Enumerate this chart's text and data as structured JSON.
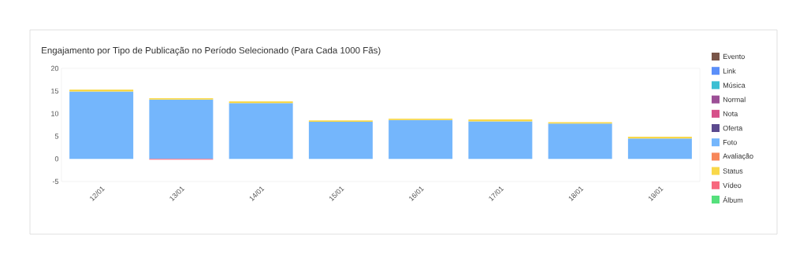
{
  "chart_data": {
    "type": "bar",
    "title": "Engajamento por Tipo de Publicação no Período Selecionado (Para Cada 1000 Fãs)",
    "stacked": true,
    "legend": "right",
    "categories": [
      "12/01",
      "13/01",
      "14/01",
      "15/01",
      "16/01",
      "17/01",
      "18/01",
      "19/01"
    ],
    "ylim": [
      -5,
      20
    ],
    "yticks": [
      -5,
      0,
      5,
      10,
      15,
      20
    ],
    "series": [
      {
        "name": "Evento",
        "color": "#795548",
        "values": [
          0,
          0,
          0,
          0,
          0,
          0,
          0,
          0
        ]
      },
      {
        "name": "Link",
        "color": "#5b8ff9",
        "values": [
          0,
          0,
          0,
          0,
          0,
          0,
          0,
          0
        ]
      },
      {
        "name": "Música",
        "color": "#3bbfd3",
        "values": [
          0,
          0,
          0,
          0,
          0,
          0,
          0,
          0
        ]
      },
      {
        "name": "Normal",
        "color": "#9c4f96",
        "values": [
          0,
          0,
          0,
          0,
          0,
          0,
          0,
          0
        ]
      },
      {
        "name": "Nota",
        "color": "#d6508a",
        "values": [
          0,
          0,
          0,
          0,
          0,
          0,
          0,
          0
        ]
      },
      {
        "name": "Oferta",
        "color": "#5b4a8e",
        "values": [
          0,
          0,
          0,
          0,
          0,
          0,
          0,
          0
        ]
      },
      {
        "name": "Foto",
        "color": "#74b6fc",
        "values": [
          14.9,
          13.1,
          12.3,
          8.2,
          8.6,
          8.3,
          7.8,
          4.5
        ]
      },
      {
        "name": "Avaliação",
        "color": "#f7875a",
        "values": [
          0,
          0,
          0,
          0,
          0,
          0,
          0,
          0
        ]
      },
      {
        "name": "Status",
        "color": "#f9d849",
        "values": [
          0.4,
          0.3,
          0.4,
          0.3,
          0.3,
          0.4,
          0.3,
          0.4
        ]
      },
      {
        "name": "Vídeo",
        "color": "#f7687e",
        "values": [
          0,
          -0.2,
          0,
          0,
          0,
          0,
          0,
          0
        ]
      },
      {
        "name": "Álbum",
        "color": "#55e07c",
        "values": [
          0,
          0,
          0,
          0,
          0,
          0,
          0,
          0
        ]
      }
    ]
  }
}
